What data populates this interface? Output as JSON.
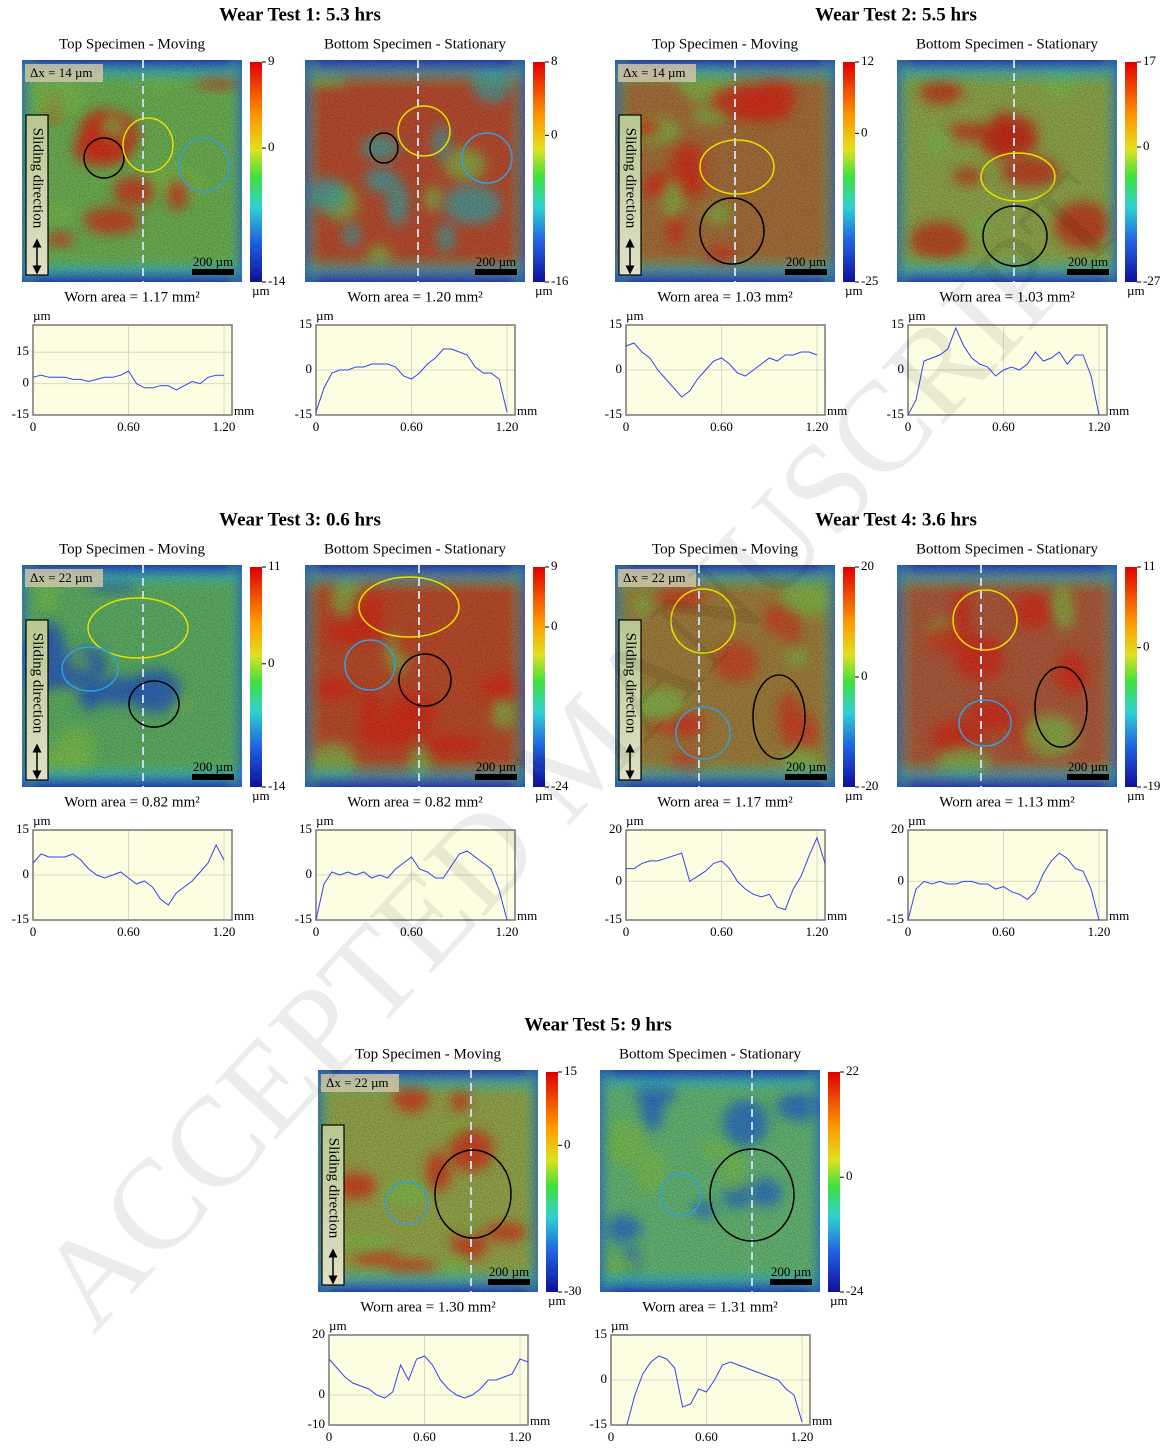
{
  "watermark": "ACCEPTED MANUSCRIPT",
  "tests": [
    {
      "title": "Wear Test 1: 5.3 hrs",
      "specimens": [
        {
          "label": "Top Specimen - Moving",
          "dx": "Δx = 14 µm",
          "sliding": "Sliding direction",
          "scale": "200 µm",
          "colorbar": {
            "lim": [
              -14,
              9
            ],
            "ticks": [
              9,
              0,
              -14
            ],
            "unit": "µm"
          },
          "worn_area": "Worn area = 1.17 mm²"
        },
        {
          "label": "Bottom Specimen - Stationary",
          "scale": "200 µm",
          "colorbar": {
            "lim": [
              -16,
              8
            ],
            "ticks": [
              8,
              0,
              -16
            ],
            "unit": "µm"
          },
          "worn_area": "Worn area = 1.20 mm²"
        }
      ]
    },
    {
      "title": "Wear Test 2: 5.5 hrs",
      "specimens": [
        {
          "label": "Top Specimen - Moving",
          "dx": "Δx = 14 µm",
          "sliding": "Sliding direction",
          "scale": "200 µm",
          "colorbar": {
            "lim": [
              -25,
              12
            ],
            "ticks": [
              12,
              0,
              -25
            ],
            "unit": "µm"
          },
          "worn_area": "Worn area = 1.03 mm²"
        },
        {
          "label": "Bottom Specimen - Stationary",
          "scale": "200 µm",
          "colorbar": {
            "lim": [
              -27,
              17
            ],
            "ticks": [
              17,
              0,
              -27
            ],
            "unit": "µm"
          },
          "worn_area": "Worn area = 1.03 mm²"
        }
      ]
    },
    {
      "title": "Wear Test 3: 0.6 hrs",
      "specimens": [
        {
          "label": "Top Specimen - Moving",
          "dx": "Δx = 22 µm",
          "sliding": "Sliding direction",
          "scale": "200 µm",
          "colorbar": {
            "lim": [
              -14,
              11
            ],
            "ticks": [
              11,
              0,
              -14
            ],
            "unit": "µm"
          },
          "worn_area": "Worn area = 0.82 mm²"
        },
        {
          "label": "Bottom Specimen - Stationary",
          "scale": "200 µm",
          "colorbar": {
            "lim": [
              -24,
              9
            ],
            "ticks": [
              9,
              0,
              -24
            ],
            "unit": "µm"
          },
          "worn_area": "Worn area = 0.82 mm²"
        }
      ]
    },
    {
      "title": "Wear Test 4: 3.6 hrs",
      "specimens": [
        {
          "label": "Top Specimen - Moving",
          "dx": "Δx = 22 µm",
          "sliding": "Sliding direction",
          "scale": "200 µm",
          "colorbar": {
            "lim": [
              -20,
              20
            ],
            "ticks": [
              20,
              0,
              -20
            ],
            "unit": "µm"
          },
          "worn_area": "Worn area = 1.17 mm²"
        },
        {
          "label": "Bottom Specimen - Stationary",
          "scale": "200 µm",
          "colorbar": {
            "lim": [
              -19,
              11
            ],
            "ticks": [
              11,
              0,
              -19
            ],
            "unit": "µm"
          },
          "worn_area": "Worn area = 1.13 mm²"
        }
      ]
    },
    {
      "title": "Wear Test 5: 9 hrs",
      "specimens": [
        {
          "label": "Top Specimen - Moving",
          "dx": "Δx = 22 µm",
          "sliding": "Sliding direction",
          "scale": "200 µm",
          "colorbar": {
            "lim": [
              -30,
              15
            ],
            "ticks": [
              15,
              0,
              -30
            ],
            "unit": "µm"
          },
          "worn_area": "Worn area = 1.30 mm²"
        },
        {
          "label": "Bottom Specimen - Stationary",
          "scale": "200 µm",
          "colorbar": {
            "lim": [
              -24,
              22
            ],
            "ticks": [
              22,
              0,
              -24
            ],
            "unit": "µm"
          },
          "worn_area": "Worn area = 1.31 mm²"
        }
      ]
    }
  ],
  "chart_data": [
    {
      "type": "line",
      "ylabel": "µm",
      "xlabel": "mm",
      "color": "#3344ee",
      "xlim": [
        0,
        1.25
      ],
      "ylim": [
        -15,
        28
      ],
      "xticks": [
        0,
        {
          "value": 0.6,
          "label": "0.60"
        },
        {
          "value": 1.2,
          "label": "1.20"
        }
      ],
      "yticks": [
        15,
        0,
        -15
      ],
      "x": [
        0,
        0.05,
        0.1,
        0.15,
        0.2,
        0.25,
        0.3,
        0.35,
        0.4,
        0.45,
        0.5,
        0.55,
        0.6,
        0.65,
        0.7,
        0.75,
        0.8,
        0.85,
        0.9,
        0.95,
        1.0,
        1.05,
        1.1,
        1.15,
        1.2
      ],
      "values": [
        3,
        4,
        3,
        3,
        3,
        2,
        2,
        1,
        2,
        3,
        3,
        4,
        6,
        0,
        -2,
        -2,
        -1,
        -1,
        -3,
        -1,
        1,
        0,
        3,
        4,
        4
      ]
    },
    {
      "type": "line",
      "ylabel": "µm",
      "xlabel": "mm",
      "color": "#3344ee",
      "xlim": [
        0,
        1.25
      ],
      "ylim": [
        -15,
        15
      ],
      "xticks": [
        0,
        {
          "value": 0.6,
          "label": "0.60"
        },
        {
          "value": 1.2,
          "label": "1.20"
        }
      ],
      "yticks": [
        15,
        0,
        -15
      ],
      "x": [
        0,
        0.05,
        0.1,
        0.15,
        0.2,
        0.25,
        0.3,
        0.35,
        0.4,
        0.45,
        0.5,
        0.55,
        0.6,
        0.65,
        0.7,
        0.75,
        0.8,
        0.85,
        0.9,
        0.95,
        1.0,
        1.05,
        1.1,
        1.15,
        1.2
      ],
      "values": [
        -14,
        -6,
        -1,
        0,
        0,
        1,
        1,
        2,
        2,
        2,
        1,
        -2,
        -3,
        -1,
        2,
        4,
        7,
        7,
        6,
        5,
        1,
        -1,
        -1,
        -3,
        -14
      ]
    },
    {
      "type": "line",
      "ylabel": "µm",
      "xlabel": "mm",
      "color": "#3344ee",
      "xlim": [
        0,
        1.25
      ],
      "ylim": [
        -15,
        15
      ],
      "xticks": [
        0,
        {
          "value": 0.6,
          "label": "0.60"
        },
        {
          "value": 1.2,
          "label": "1.20"
        }
      ],
      "yticks": [
        15,
        0,
        -15
      ],
      "x": [
        0,
        0.05,
        0.1,
        0.15,
        0.2,
        0.25,
        0.3,
        0.35,
        0.4,
        0.45,
        0.5,
        0.55,
        0.6,
        0.65,
        0.7,
        0.75,
        0.8,
        0.85,
        0.9,
        0.95,
        1.0,
        1.05,
        1.1,
        1.15,
        1.2
      ],
      "values": [
        8,
        9,
        6,
        4,
        0,
        -3,
        -6,
        -9,
        -7,
        -3,
        0,
        3,
        4,
        2,
        -1,
        -2,
        0,
        2,
        4,
        3,
        5,
        5,
        6,
        6,
        5
      ]
    },
    {
      "type": "line",
      "ylabel": "µm",
      "xlabel": "mm",
      "color": "#3344ee",
      "xlim": [
        0,
        1.25
      ],
      "ylim": [
        -15,
        15
      ],
      "xticks": [
        0,
        {
          "value": 0.6,
          "label": "0.60"
        },
        {
          "value": 1.2,
          "label": "1.20"
        }
      ],
      "yticks": [
        15,
        0,
        -15
      ],
      "x": [
        0,
        0.05,
        0.1,
        0.15,
        0.2,
        0.25,
        0.3,
        0.35,
        0.4,
        0.45,
        0.5,
        0.55,
        0.6,
        0.65,
        0.7,
        0.75,
        0.8,
        0.85,
        0.9,
        0.95,
        1.0,
        1.05,
        1.1,
        1.15,
        1.2
      ],
      "values": [
        -15,
        -10,
        3,
        4,
        5,
        7,
        14,
        8,
        4,
        2,
        1,
        -2,
        0,
        1,
        0,
        2,
        6,
        3,
        4,
        6,
        2,
        5,
        5,
        -2,
        -15
      ]
    },
    {
      "type": "line",
      "ylabel": "µm",
      "xlabel": "mm",
      "color": "#3344ee",
      "xlim": [
        0,
        1.25
      ],
      "ylim": [
        -15,
        15
      ],
      "xticks": [
        0,
        {
          "value": 0.6,
          "label": "0.60"
        },
        {
          "value": 1.2,
          "label": "1.20"
        }
      ],
      "yticks": [
        15,
        0,
        -15
      ],
      "x": [
        0,
        0.05,
        0.1,
        0.15,
        0.2,
        0.25,
        0.3,
        0.35,
        0.4,
        0.45,
        0.5,
        0.55,
        0.6,
        0.65,
        0.7,
        0.75,
        0.8,
        0.85,
        0.9,
        0.95,
        1.0,
        1.05,
        1.1,
        1.15,
        1.2
      ],
      "values": [
        4,
        7,
        6,
        6,
        6,
        7,
        5,
        2,
        0,
        -1,
        0,
        1,
        -1,
        -3,
        -2,
        -4,
        -8,
        -10,
        -6,
        -4,
        -2,
        1,
        4,
        10,
        5
      ]
    },
    {
      "type": "line",
      "ylabel": "µm",
      "xlabel": "mm",
      "color": "#3344ee",
      "xlim": [
        0,
        1.25
      ],
      "ylim": [
        -15,
        15
      ],
      "xticks": [
        0,
        {
          "value": 0.6,
          "label": "0.60"
        },
        {
          "value": 1.2,
          "label": "1.20"
        }
      ],
      "yticks": [
        15,
        0,
        -15
      ],
      "x": [
        0,
        0.05,
        0.1,
        0.15,
        0.2,
        0.25,
        0.3,
        0.35,
        0.4,
        0.45,
        0.5,
        0.55,
        0.6,
        0.65,
        0.7,
        0.75,
        0.8,
        0.85,
        0.9,
        0.95,
        1.0,
        1.05,
        1.1,
        1.15,
        1.2
      ],
      "values": [
        -15,
        -3,
        1,
        0,
        1,
        0,
        1,
        -1,
        0,
        -1,
        2,
        4,
        6,
        2,
        1,
        -1,
        -1,
        3,
        7,
        8,
        6,
        4,
        2,
        -5,
        -15
      ]
    },
    {
      "type": "line",
      "ylabel": "µm",
      "xlabel": "mm",
      "color": "#3344ee",
      "xlim": [
        0,
        1.25
      ],
      "ylim": [
        -15,
        20
      ],
      "xticks": [
        0,
        {
          "value": 0.6,
          "label": "0.60"
        },
        {
          "value": 1.2,
          "label": "1.20"
        }
      ],
      "yticks": [
        20,
        0,
        -15
      ],
      "x": [
        0,
        0.05,
        0.1,
        0.15,
        0.2,
        0.25,
        0.3,
        0.35,
        0.4,
        0.45,
        0.5,
        0.55,
        0.6,
        0.65,
        0.7,
        0.75,
        0.8,
        0.85,
        0.9,
        0.95,
        1.0,
        1.05,
        1.1,
        1.15,
        1.2,
        1.25
      ],
      "values": [
        5,
        5,
        7,
        8,
        8,
        9,
        10,
        11,
        0,
        2,
        4,
        7,
        8,
        5,
        0,
        -3,
        -5,
        -6,
        -5,
        -10,
        -11,
        -3,
        2,
        10,
        17,
        7
      ]
    },
    {
      "type": "line",
      "ylabel": "µm",
      "xlabel": "mm",
      "color": "#3344ee",
      "xlim": [
        0,
        1.25
      ],
      "ylim": [
        -15,
        20
      ],
      "xticks": [
        0,
        {
          "value": 0.6,
          "label": "0.60"
        },
        {
          "value": 1.2,
          "label": "1.20"
        }
      ],
      "yticks": [
        20,
        0,
        -15
      ],
      "x": [
        0,
        0.05,
        0.1,
        0.15,
        0.2,
        0.25,
        0.3,
        0.35,
        0.4,
        0.45,
        0.5,
        0.55,
        0.6,
        0.65,
        0.7,
        0.75,
        0.8,
        0.85,
        0.9,
        0.95,
        1.0,
        1.05,
        1.1,
        1.15,
        1.2
      ],
      "values": [
        -15,
        -3,
        0,
        -1,
        0,
        -1,
        -1,
        0,
        0,
        -1,
        -1,
        -3,
        -2,
        -4,
        -5,
        -7,
        -4,
        3,
        8,
        11,
        9,
        5,
        4,
        -3,
        -15
      ]
    },
    {
      "type": "line",
      "ylabel": "µm",
      "xlabel": "mm",
      "color": "#3344ee",
      "xlim": [
        0,
        1.25
      ],
      "ylim": [
        -10,
        20
      ],
      "xticks": [
        0,
        {
          "value": 0.6,
          "label": "0.60"
        },
        {
          "value": 1.2,
          "label": "1.20"
        }
      ],
      "yticks": [
        20,
        0,
        -10
      ],
      "x": [
        0,
        0.05,
        0.1,
        0.15,
        0.2,
        0.25,
        0.3,
        0.35,
        0.4,
        0.45,
        0.5,
        0.55,
        0.6,
        0.65,
        0.7,
        0.75,
        0.8,
        0.85,
        0.9,
        0.95,
        1.0,
        1.05,
        1.1,
        1.15,
        1.2,
        1.25
      ],
      "values": [
        12,
        9,
        6,
        4,
        3,
        2,
        0,
        -1,
        1,
        10,
        5,
        12,
        13,
        10,
        5,
        2,
        0,
        -1,
        0,
        2,
        5,
        5,
        6,
        7,
        12,
        11
      ]
    },
    {
      "type": "line",
      "ylabel": "µm",
      "xlabel": "mm",
      "color": "#3344ee",
      "xlim": [
        0,
        1.25
      ],
      "ylim": [
        -15,
        15
      ],
      "xticks": [
        0,
        {
          "value": 0.6,
          "label": "0.60"
        },
        {
          "value": 1.2,
          "label": "1.20"
        }
      ],
      "yticks": [
        15,
        0,
        -15
      ],
      "x": [
        0.1,
        0.15,
        0.2,
        0.25,
        0.3,
        0.35,
        0.4,
        0.45,
        0.5,
        0.55,
        0.6,
        0.65,
        0.7,
        0.75,
        0.8,
        0.85,
        0.9,
        0.95,
        1.0,
        1.05,
        1.1,
        1.15,
        1.2
      ],
      "values": [
        -15,
        -5,
        2,
        6,
        8,
        7,
        4,
        -9,
        -8,
        -3,
        -4,
        0,
        5,
        6,
        5,
        4,
        3,
        2,
        1,
        0,
        -3,
        -5,
        -14
      ]
    }
  ]
}
